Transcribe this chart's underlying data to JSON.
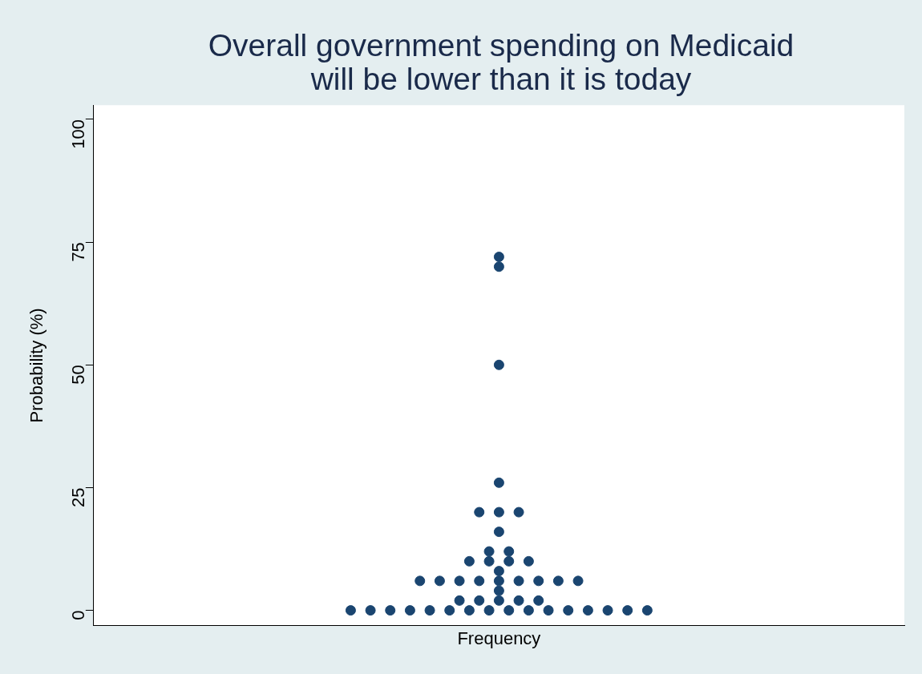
{
  "chart_data": {
    "type": "scatter",
    "title": "Overall government spending on Medicaid will be lower than it is today",
    "xlabel": "Frequency",
    "ylabel": "Probability (%)",
    "categories": [
      null,
      null,
      null,
      null,
      null,
      null,
      null,
      null,
      null,
      null,
      null,
      null,
      null,
      null,
      null,
      null,
      null,
      null,
      null,
      null,
      null,
      null,
      null,
      null,
      null,
      null,
      null,
      null,
      null,
      null,
      null,
      null,
      null,
      null,
      null,
      null,
      null,
      null,
      null,
      null,
      null,
      null,
      null,
      null,
      null,
      null,
      null,
      null,
      null,
      null,
      null,
      null,
      null,
      null,
      null,
      null,
      null,
      null,
      null,
      null,
      null,
      null,
      null,
      null,
      null,
      null,
      null,
      null,
      null,
      null,
      null,
      null,
      null,
      null,
      null,
      null,
      null,
      null,
      null,
      null,
      null,
      null,
      null
    ],
    "series": [
      {
        "color": "#1a4570",
        "values": [
          null,
          null,
          null,
          null,
          null,
          null,
          null,
          null,
          null,
          null,
          null,
          null,
          null,
          null,
          null,
          null,
          null,
          null,
          null,
          null,
          null,
          null,
          null,
          null,
          null,
          null,
          0,
          null,
          0,
          null,
          0,
          null,
          0,
          6,
          0,
          6,
          0,
          2,
          0,
          2,
          0,
          2,
          0,
          2,
          0,
          2,
          0,
          6,
          0,
          6,
          0,
          null,
          0,
          null,
          0,
          null,
          0,
          null,
          null,
          null,
          null,
          null,
          null,
          null,
          null,
          null,
          null,
          null,
          null,
          null,
          null,
          null,
          null,
          null,
          null,
          null,
          null,
          null,
          null,
          null,
          null,
          null,
          null
        ]
      },
      {
        "color": "#1a4570",
        "values": [
          null,
          null,
          null,
          null,
          null,
          null,
          null,
          null,
          null,
          null,
          null,
          null,
          null,
          null,
          null,
          null,
          null,
          null,
          null,
          null,
          null,
          null,
          null,
          null,
          null,
          null,
          null,
          null,
          null,
          null,
          null,
          null,
          null,
          null,
          null,
          null,
          null,
          6,
          10,
          6,
          10,
          4,
          10,
          6,
          10,
          6,
          null,
          null,
          null,
          null,
          null,
          null,
          null,
          null,
          null,
          null,
          null,
          null,
          null,
          null,
          null,
          null,
          null,
          null,
          null,
          null,
          null,
          null,
          null,
          null,
          null,
          null,
          null,
          null,
          null,
          null,
          null,
          null,
          null,
          null,
          null,
          null,
          null
        ]
      },
      {
        "color": "#1a4570",
        "values": [
          null,
          null,
          null,
          null,
          null,
          null,
          null,
          null,
          null,
          null,
          null,
          null,
          null,
          null,
          null,
          null,
          null,
          null,
          null,
          null,
          null,
          null,
          null,
          null,
          null,
          null,
          null,
          null,
          null,
          null,
          null,
          null,
          null,
          null,
          null,
          null,
          null,
          null,
          null,
          20,
          12,
          6,
          12,
          20,
          null,
          null,
          null,
          null,
          null,
          null,
          null,
          null,
          null,
          null,
          null,
          null,
          null,
          null,
          null,
          null,
          null,
          null,
          null,
          null,
          null,
          null,
          null,
          null,
          null,
          null,
          null,
          null,
          null,
          null,
          null,
          null,
          null,
          null,
          null,
          null,
          null,
          null,
          null
        ]
      },
      {
        "color": "#1a4570",
        "values": [
          null,
          null,
          null,
          null,
          null,
          null,
          null,
          null,
          null,
          null,
          null,
          null,
          null,
          null,
          null,
          null,
          null,
          null,
          null,
          null,
          null,
          null,
          null,
          null,
          null,
          null,
          null,
          null,
          null,
          null,
          null,
          null,
          null,
          null,
          null,
          null,
          null,
          null,
          null,
          null,
          null,
          8,
          null,
          null,
          null,
          null,
          null,
          null,
          null,
          null,
          null,
          null,
          null,
          null,
          null,
          null,
          null,
          null,
          null,
          null,
          null,
          null,
          null,
          null,
          null,
          null,
          null,
          null,
          null,
          null,
          null,
          null,
          null,
          null,
          null,
          null,
          null,
          null,
          null,
          null,
          null,
          null,
          null
        ]
      },
      {
        "color": "#1a4570",
        "values": [
          null,
          null,
          null,
          null,
          null,
          null,
          null,
          null,
          null,
          null,
          null,
          null,
          null,
          null,
          null,
          null,
          null,
          null,
          null,
          null,
          null,
          null,
          null,
          null,
          null,
          null,
          null,
          null,
          null,
          null,
          null,
          null,
          null,
          null,
          null,
          null,
          null,
          null,
          null,
          null,
          null,
          16,
          null,
          null,
          null,
          null,
          null,
          null,
          null,
          null,
          null,
          null,
          null,
          null,
          null,
          null,
          null,
          null,
          null,
          null,
          null,
          null,
          null,
          null,
          null,
          null,
          null,
          null,
          null,
          null,
          null,
          null,
          null,
          null,
          null,
          null,
          null,
          null,
          null,
          null,
          null,
          null,
          null
        ]
      },
      {
        "color": "#1a4570",
        "values": [
          null,
          null,
          null,
          null,
          null,
          null,
          null,
          null,
          null,
          null,
          null,
          null,
          null,
          null,
          null,
          null,
          null,
          null,
          null,
          null,
          null,
          null,
          null,
          null,
          null,
          null,
          null,
          null,
          null,
          null,
          null,
          null,
          null,
          null,
          null,
          null,
          null,
          null,
          null,
          null,
          null,
          20,
          null,
          null,
          null,
          null,
          null,
          null,
          null,
          null,
          null,
          null,
          null,
          null,
          null,
          null,
          null,
          null,
          null,
          null,
          null,
          null,
          null,
          null,
          null,
          null,
          null,
          null,
          null,
          null,
          null,
          null,
          null,
          null,
          null,
          null,
          null,
          null,
          null,
          null,
          null,
          null,
          null
        ]
      },
      {
        "color": "#1a4570",
        "values": [
          null,
          null,
          null,
          null,
          null,
          null,
          null,
          null,
          null,
          null,
          null,
          null,
          null,
          null,
          null,
          null,
          null,
          null,
          null,
          null,
          null,
          null,
          null,
          null,
          null,
          null,
          null,
          null,
          null,
          null,
          null,
          null,
          null,
          null,
          null,
          null,
          null,
          null,
          null,
          null,
          null,
          26,
          null,
          null,
          null,
          null,
          null,
          null,
          null,
          null,
          null,
          null,
          null,
          null,
          null,
          null,
          null,
          null,
          null,
          null,
          null,
          null,
          null,
          null,
          null,
          null,
          null,
          null,
          null,
          null,
          null,
          null,
          null,
          null,
          null,
          null,
          null,
          null,
          null,
          null,
          null,
          null,
          null
        ]
      },
      {
        "color": "#1a4570",
        "values": [
          null,
          null,
          null,
          null,
          null,
          null,
          null,
          null,
          null,
          null,
          null,
          null,
          null,
          null,
          null,
          null,
          null,
          null,
          null,
          null,
          null,
          null,
          null,
          null,
          null,
          null,
          null,
          null,
          null,
          null,
          null,
          null,
          null,
          null,
          null,
          null,
          null,
          null,
          null,
          null,
          null,
          50,
          null,
          null,
          null,
          null,
          null,
          null,
          null,
          null,
          null,
          null,
          null,
          null,
          null,
          null,
          null,
          null,
          null,
          null,
          null,
          null,
          null,
          null,
          null,
          null,
          null,
          null,
          null,
          null,
          null,
          null,
          null,
          null,
          null,
          null,
          null,
          null,
          null,
          null,
          null,
          null,
          null
        ]
      },
      {
        "color": "#1a4570",
        "values": [
          null,
          null,
          null,
          null,
          null,
          null,
          null,
          null,
          null,
          null,
          null,
          null,
          null,
          null,
          null,
          null,
          null,
          null,
          null,
          null,
          null,
          null,
          null,
          null,
          null,
          null,
          null,
          null,
          null,
          null,
          null,
          null,
          null,
          null,
          null,
          null,
          null,
          null,
          null,
          null,
          null,
          70,
          null,
          null,
          null,
          null,
          null,
          null,
          null,
          null,
          null,
          null,
          null,
          null,
          null,
          null,
          null,
          null,
          null,
          null,
          null,
          null,
          null,
          null,
          null,
          null,
          null,
          null,
          null,
          null,
          null,
          null,
          null,
          null,
          null,
          null,
          null,
          null,
          null,
          null,
          null,
          null,
          null
        ]
      },
      {
        "color": "#1a4570",
        "values": [
          null,
          null,
          null,
          null,
          null,
          null,
          null,
          null,
          null,
          null,
          null,
          null,
          null,
          null,
          null,
          null,
          null,
          null,
          null,
          null,
          null,
          null,
          null,
          null,
          null,
          null,
          null,
          null,
          null,
          null,
          null,
          null,
          null,
          null,
          null,
          null,
          null,
          null,
          null,
          null,
          null,
          72,
          null,
          null,
          null,
          null,
          null,
          null,
          null,
          null,
          null,
          null,
          null,
          null,
          null,
          null,
          null,
          null,
          null,
          null,
          null,
          null,
          null,
          null,
          null,
          null,
          null,
          null,
          null,
          null,
          null,
          null,
          null,
          null,
          null,
          null,
          null,
          null,
          null,
          null,
          null,
          null,
          null
        ]
      }
    ],
    "marker": "circle",
    "ylim": [
      -3.1,
      102.9
    ],
    "yticks": [
      0,
      25,
      50,
      75,
      100
    ],
    "tick_labels": "y",
    "grid": false,
    "legend": false
  }
}
